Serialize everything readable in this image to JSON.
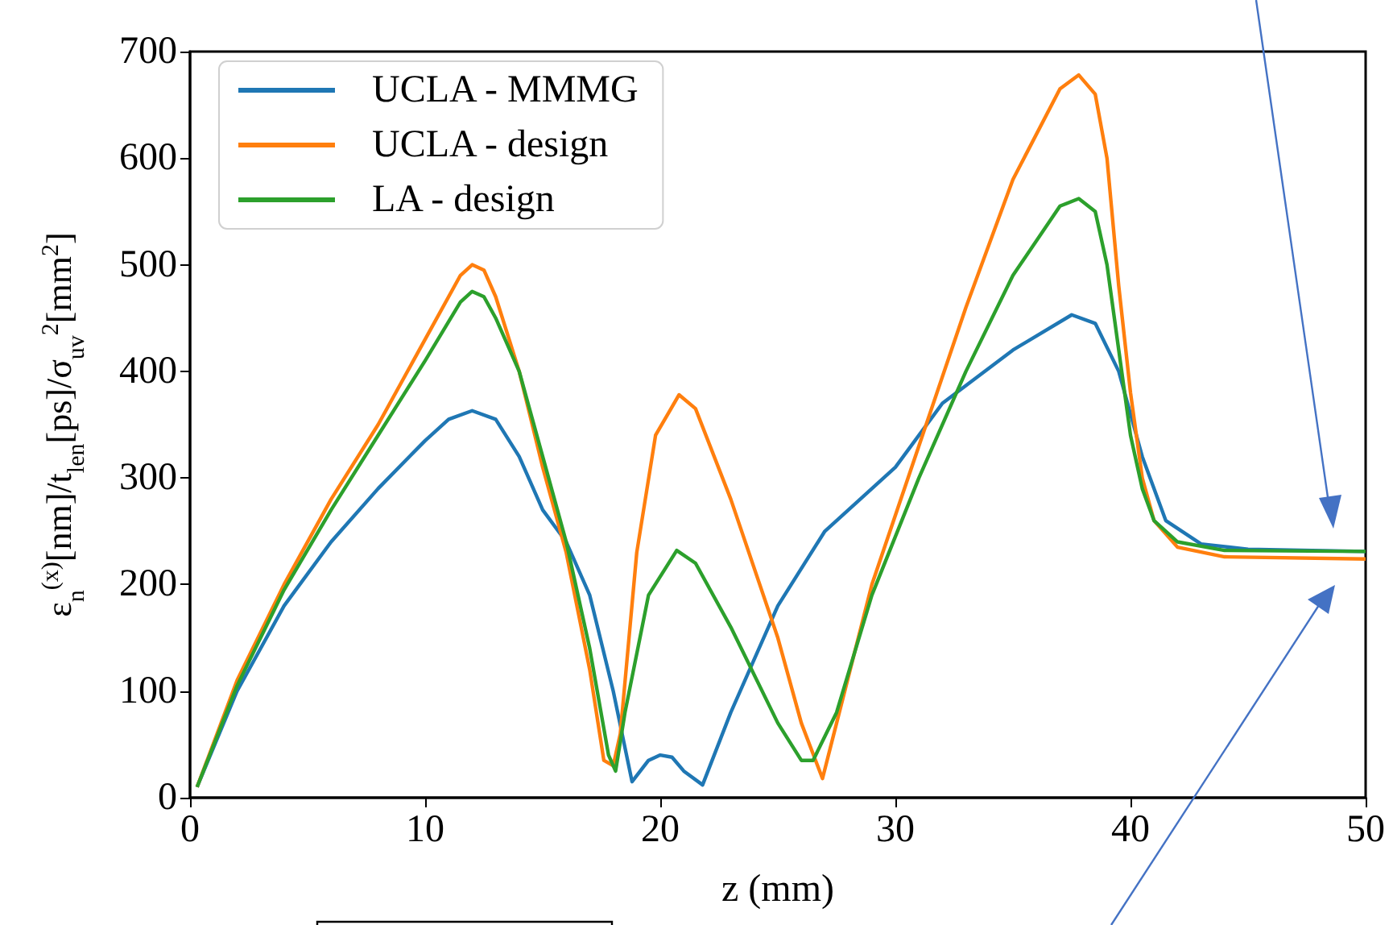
{
  "chart_data": {
    "type": "line",
    "xlabel": "z (mm)",
    "ylabel": "ε$_{n}$$^{(x)}$[nm]/t$_{len}$[ps]/σ$_{uv}$$^{2}$[mm$^{2}$]",
    "xlim": [
      0,
      50
    ],
    "xticks": [
      0,
      10,
      20,
      30,
      40,
      50
    ],
    "ylim": [
      0,
      700
    ],
    "yticks": [
      0,
      100,
      200,
      300,
      400,
      500,
      600,
      700
    ],
    "grid": false,
    "legend": "top left",
    "marker": "none",
    "line_style": "solid",
    "series": [
      {
        "name": "UCLA - MMMG",
        "color": "#1f77b4",
        "x": [
          0.3,
          2,
          4,
          6,
          8,
          10,
          11,
          12,
          13,
          14,
          15,
          16,
          17,
          18,
          18.8,
          19.5,
          20,
          20.5,
          21,
          21.8,
          23,
          25,
          27,
          30,
          32,
          35,
          37.5,
          38.5,
          39.5,
          40.5,
          41.5,
          43,
          45,
          50
        ],
        "values": [
          10,
          100,
          180,
          240,
          290,
          335,
          355,
          363,
          355,
          320,
          270,
          240,
          190,
          100,
          15,
          35,
          40,
          38,
          25,
          12,
          80,
          180,
          250,
          310,
          370,
          420,
          453,
          445,
          400,
          320,
          260,
          238,
          233,
          231
        ]
      },
      {
        "name": "UCLA - design",
        "color": "#ff7f0e",
        "x": [
          0.3,
          2,
          4,
          6,
          8,
          10,
          11.5,
          12,
          12.5,
          13,
          14,
          15,
          16,
          17,
          17.6,
          18,
          18.3,
          19,
          19.8,
          20.8,
          21.5,
          23,
          25,
          26,
          26.9,
          27.5,
          29,
          31,
          33,
          35,
          37,
          37.8,
          38.5,
          39,
          39.5,
          40,
          40.5,
          41,
          42,
          44,
          50
        ],
        "values": [
          10,
          110,
          200,
          280,
          350,
          430,
          490,
          500,
          495,
          470,
          400,
          310,
          230,
          120,
          35,
          30,
          60,
          230,
          340,
          378,
          365,
          280,
          150,
          70,
          18,
          70,
          200,
          330,
          460,
          580,
          665,
          678,
          660,
          600,
          480,
          380,
          300,
          260,
          235,
          226,
          224
        ]
      },
      {
        "name": "LA - design",
        "color": "#2ca02c",
        "x": [
          0.3,
          2,
          4,
          6,
          8,
          10,
          11.5,
          12,
          12.5,
          13,
          14,
          15,
          16,
          17,
          17.8,
          18.1,
          18.5,
          19.5,
          20.7,
          21.5,
          23,
          25,
          26,
          26.5,
          27.5,
          29,
          31,
          33,
          35,
          37,
          37.8,
          38.5,
          39,
          39.5,
          40,
          40.5,
          41,
          42,
          44,
          50
        ],
        "values": [
          10,
          105,
          195,
          270,
          340,
          410,
          465,
          475,
          470,
          450,
          400,
          320,
          240,
          140,
          40,
          25,
          80,
          190,
          232,
          220,
          160,
          70,
          35,
          35,
          80,
          190,
          300,
          400,
          490,
          555,
          562,
          550,
          500,
          420,
          340,
          290,
          260,
          240,
          232,
          231
        ]
      }
    ]
  }
}
